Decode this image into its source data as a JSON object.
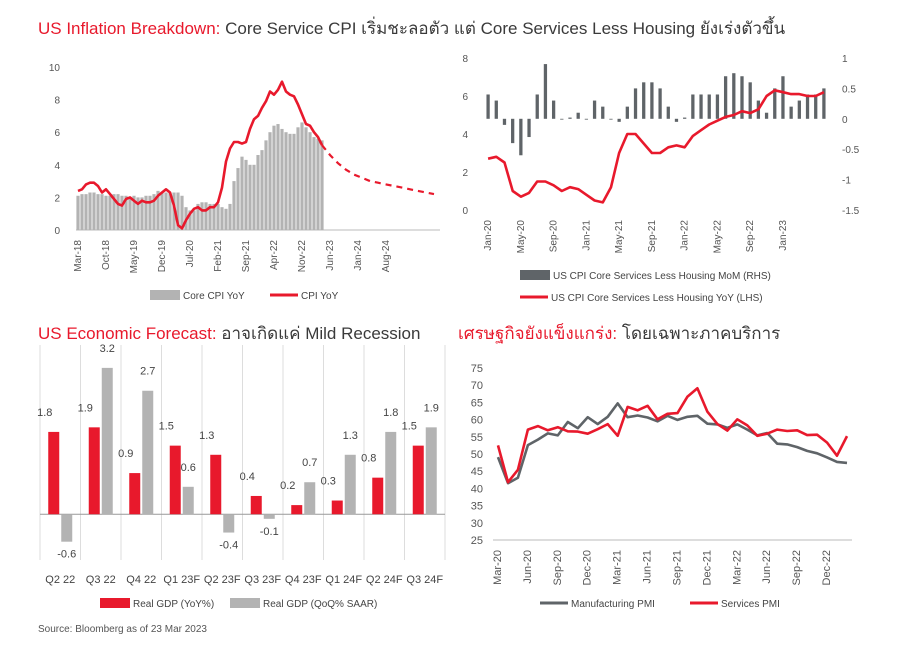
{
  "colors": {
    "red": "#e8192c",
    "gray": "#b3b3b3",
    "dark_gray": "#5f6468",
    "title_dark": "#3a3a3a"
  },
  "source": "Source: Bloomberg as of 23 Mar 2023",
  "chart_data": [
    {
      "id": "panel1",
      "type": "bar+line",
      "title": {
        "highlight": "US Inflation Breakdown:",
        "rest": " Core Service CPI เริ่มชะลอตัว  แต่ Core Services Less Housing ยังเร่งตัวขึ้น"
      },
      "ylim": [
        0,
        10
      ],
      "yticks": [
        "0",
        "2",
        "4",
        "6",
        "8",
        "10"
      ],
      "xticks": [
        "Mar-18",
        "Oct-18",
        "May-19",
        "Dec-19",
        "Jul-20",
        "Feb-21",
        "Sep-21",
        "Apr-22",
        "Nov-22",
        "Jun-23",
        "Jan-24",
        "Aug-24"
      ],
      "legend": [
        "Core CPI YoY",
        "CPI YoY"
      ],
      "x_start": "Mar-18",
      "core_cpi_yoy": [
        2.1,
        2.2,
        2.2,
        2.3,
        2.3,
        2.2,
        2.2,
        2.1,
        2.1,
        2.2,
        2.2,
        2.1,
        2.1,
        2.0,
        2.1,
        2.0,
        2.0,
        2.1,
        2.1,
        2.2,
        2.4,
        2.3,
        2.3,
        2.3,
        2.3,
        2.3,
        2.1,
        1.4,
        1.2,
        1.2,
        1.6,
        1.7,
        1.7,
        1.6,
        1.6,
        1.6,
        1.4,
        1.3,
        1.6,
        3.0,
        3.8,
        4.5,
        4.3,
        4.0,
        4.0,
        4.6,
        4.9,
        5.5,
        6.0,
        6.4,
        6.5,
        6.2,
        6.0,
        5.9,
        5.9,
        6.3,
        6.6,
        6.3,
        6.0,
        5.7,
        5.6,
        5.5
      ],
      "cpi_yoy": [
        2.4,
        2.5,
        2.8,
        2.9,
        2.9,
        2.7,
        2.3,
        2.5,
        2.2,
        1.9,
        1.6,
        1.5,
        1.9,
        2.0,
        1.8,
        1.6,
        1.8,
        1.7,
        1.7,
        1.8,
        2.1,
        2.3,
        2.5,
        2.3,
        1.5,
        0.3,
        0.1,
        0.6,
        1.0,
        1.3,
        1.4,
        1.2,
        1.2,
        1.4,
        1.4,
        1.7,
        2.6,
        4.2,
        5.0,
        5.4,
        5.4,
        5.3,
        5.4,
        6.2,
        6.8,
        7.0,
        7.5,
        7.9,
        8.5,
        8.3,
        8.6,
        9.1,
        8.5,
        8.3,
        8.2,
        7.7,
        7.1,
        6.5,
        6.4,
        6.0,
        5.7,
        5.2
      ],
      "cpi_forecast": [
        5.2,
        4.6,
        4.1,
        3.7,
        3.4,
        3.2,
        3.0,
        2.9,
        2.8,
        2.7,
        2.6,
        2.5,
        2.4,
        2.3,
        2.2
      ]
    },
    {
      "id": "panel2",
      "type": "bar+line",
      "title": {
        "highlight": "",
        "rest": ""
      },
      "ylim_left": [
        0,
        8
      ],
      "yticks_left": [
        "0",
        "2",
        "4",
        "6",
        "8"
      ],
      "ylim_right": [
        -1.5,
        1
      ],
      "yticks_right": [
        "-1.5",
        "-1",
        "-0.5",
        "0",
        "0.5",
        "1"
      ],
      "xticks": [
        "Jan-20",
        "May-20",
        "Sep-20",
        "Jan-21",
        "May-21",
        "Sep-21",
        "Jan-22",
        "May-22",
        "Sep-22",
        "Jan-23"
      ],
      "legend": [
        "US CPI Core Services Less Housing MoM  (RHS)",
        "US CPI Core Services Less Housing YoY  (LHS)"
      ],
      "mom_rhs": [
        0.4,
        0.3,
        -0.1,
        -0.4,
        -0.6,
        -0.3,
        0.4,
        0.9,
        0.3,
        0.0,
        0.02,
        0.1,
        0.0,
        0.3,
        0.2,
        0.0,
        -0.05,
        0.2,
        0.5,
        0.6,
        0.6,
        0.5,
        0.2,
        -0.05,
        0.02,
        0.4,
        0.4,
        0.4,
        0.4,
        0.7,
        0.75,
        0.7,
        0.6,
        0.3,
        0.1,
        0.5,
        0.7,
        0.2,
        0.3,
        0.4,
        0.4,
        0.5
      ],
      "yoy_lhs": [
        2.7,
        2.8,
        2.5,
        1.0,
        0.7,
        0.9,
        1.5,
        1.5,
        1.3,
        1.0,
        1.2,
        1.1,
        0.8,
        0.5,
        0.4,
        1.2,
        3.0,
        4.0,
        4.0,
        3.5,
        3.0,
        3.0,
        3.3,
        3.4,
        3.3,
        3.9,
        4.2,
        4.5,
        4.7,
        4.9,
        5.0,
        5.2,
        5.1,
        5.3,
        6.0,
        6.3,
        6.2,
        6.1,
        6.1,
        6.0,
        6.0,
        6.2
      ]
    },
    {
      "id": "panel3",
      "type": "bar",
      "title": {
        "highlight": "US Economic Forecast:",
        "rest": " อาจเกิดแค่ Mild Recession"
      },
      "ylim": [
        -1.0,
        3.7
      ],
      "categories": [
        "Q2 22",
        "Q3 22",
        "Q4 22",
        "Q1 23F",
        "Q2 23F",
        "Q3 23F",
        "Q4 23F",
        "Q1 24F",
        "Q2 24F",
        "Q3 24F"
      ],
      "series": [
        {
          "name": "Real GDP (YoY%)",
          "values": [
            1.8,
            1.9,
            0.9,
            1.5,
            1.3,
            0.4,
            0.2,
            0.3,
            0.8,
            1.5
          ],
          "labels": [
            "1.8",
            "1.9",
            "0.9",
            "1.5",
            "1.3",
            "0.4",
            "0.2",
            "0.3",
            "0.8",
            "1.5"
          ]
        },
        {
          "name": "Real GDP (QoQ% SAAR)",
          "values": [
            -0.6,
            3.2,
            2.7,
            0.6,
            -0.4,
            -0.1,
            0.7,
            1.3,
            1.8,
            1.9
          ],
          "labels": [
            "-0.6",
            "3.2",
            "2.7",
            "0.6",
            "-0.4",
            "-0.1",
            "0.7",
            "1.3",
            "1.8",
            "1.9"
          ]
        }
      ]
    },
    {
      "id": "panel4",
      "type": "line",
      "title": {
        "highlight": "เศรษฐกิจยังแข็งแกร่ง:",
        "rest": " โดยเฉพาะภาคบริการ"
      },
      "ylim": [
        25,
        75
      ],
      "yticks": [
        "25",
        "30",
        "35",
        "40",
        "45",
        "50",
        "55",
        "60",
        "65",
        "70",
        "75"
      ],
      "xticks": [
        "Mar-20",
        "Jun-20",
        "Sep-20",
        "Dec-20",
        "Mar-21",
        "Jun-21",
        "Sep-21",
        "Dec-21",
        "Mar-22",
        "Jun-22",
        "Sep-22",
        "Dec-22"
      ],
      "legend": [
        "Manufacturing PMI",
        "Services PMI"
      ],
      "series": [
        {
          "name": "Manufacturing PMI",
          "values": [
            49.1,
            41.5,
            43.1,
            52.6,
            54.2,
            56.0,
            55.4,
            59.3,
            57.5,
            60.7,
            58.7,
            60.8,
            64.7,
            60.7,
            61.2,
            60.6,
            59.5,
            61.1,
            59.9,
            60.8,
            61.1,
            58.8,
            58.6,
            57.6,
            58.6,
            57.1,
            55.4,
            56.1,
            53.0,
            52.8,
            52.0,
            50.9,
            50.2,
            49.0,
            47.7,
            47.4
          ]
        },
        {
          "name": "Services PMI",
          "values": [
            52.5,
            41.8,
            45.4,
            57.1,
            58.1,
            56.9,
            57.8,
            56.6,
            56.5,
            55.9,
            57.2,
            58.7,
            55.3,
            63.7,
            62.7,
            64.0,
            60.1,
            61.7,
            61.9,
            66.7,
            69.1,
            62.3,
            58.7,
            56.8,
            60.1,
            58.3,
            55.3,
            55.9,
            57.1,
            56.7,
            56.9,
            55.5,
            55.6,
            53.3,
            49.5,
            55.2
          ]
        }
      ]
    }
  ]
}
